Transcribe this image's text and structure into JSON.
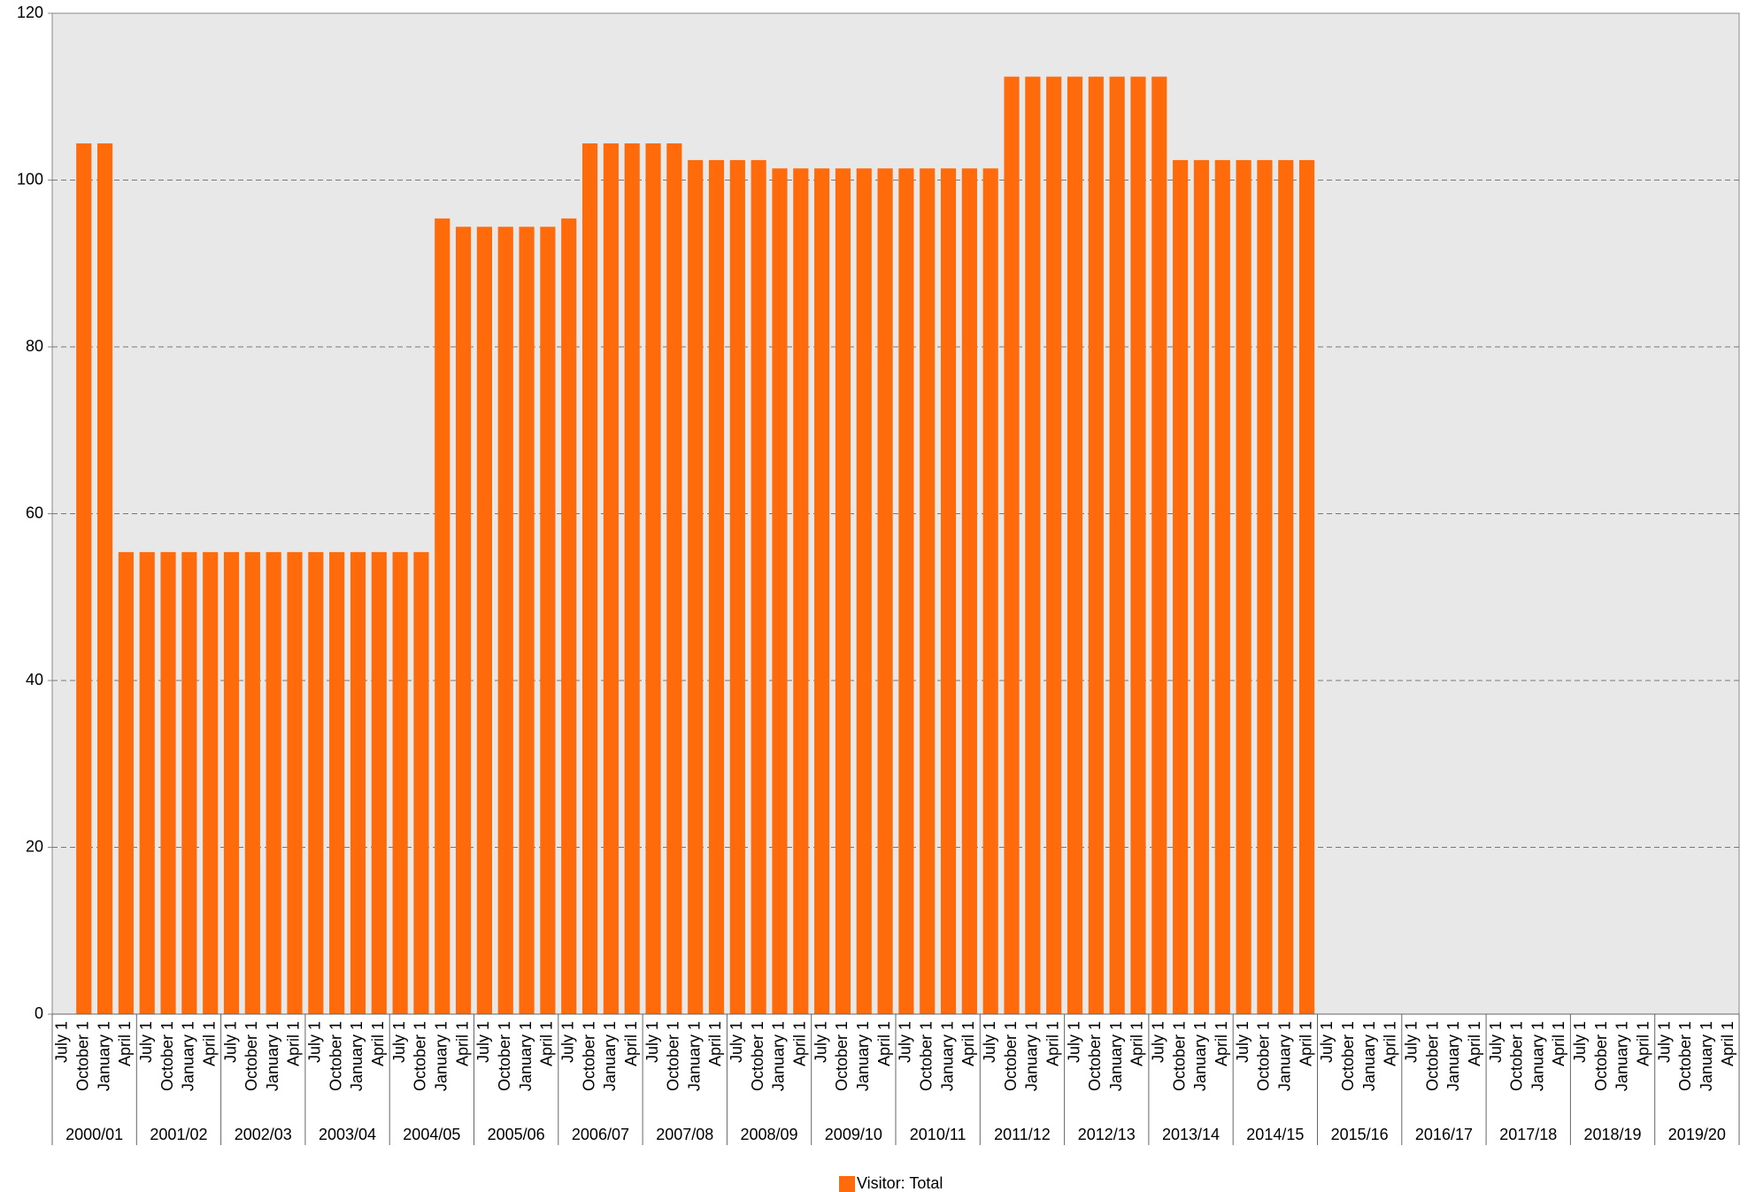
{
  "chart_data": {
    "type": "bar",
    "categories": [
      "July 1",
      "October 1",
      "January 1",
      "April 1",
      "July 1",
      "October 1",
      "January 1",
      "April 1",
      "July 1",
      "October 1",
      "January 1",
      "April 1",
      "July 1",
      "October 1",
      "January 1",
      "April 1",
      "July 1",
      "October 1",
      "January 1",
      "April 1",
      "July 1",
      "October 1",
      "January 1",
      "April 1",
      "July 1",
      "October 1",
      "January 1",
      "April 1",
      "July 1",
      "October 1",
      "January 1",
      "April 1",
      "July 1",
      "October 1",
      "January 1",
      "April 1",
      "July 1",
      "October 1",
      "January 1",
      "April 1",
      "July 1",
      "October 1",
      "January 1",
      "April 1",
      "July 1",
      "October 1",
      "January 1",
      "April 1",
      "July 1",
      "October 1",
      "January 1",
      "April 1",
      "July 1",
      "October 1",
      "January 1",
      "April 1",
      "July 1",
      "October 1",
      "January 1",
      "April 1",
      "July 1",
      "October 1",
      "January 1",
      "April 1",
      "July 1",
      "October 1",
      "January 1",
      "April 1",
      "July 1",
      "October 1",
      "January 1",
      "April 1",
      "July 1",
      "October 1",
      "January 1",
      "April 1",
      "July 1",
      "October 1",
      "January 1",
      "April 1"
    ],
    "groups": [
      "2000/01",
      "2001/02",
      "2002/03",
      "2003/04",
      "2004/05",
      "2005/06",
      "2006/07",
      "2007/08",
      "2008/09",
      "2009/10",
      "2010/11",
      "2011/12",
      "2012/13",
      "2013/14",
      "2014/15",
      "2015/16",
      "2016/17",
      "2017/18",
      "2018/19",
      "2019/20"
    ],
    "series": [
      {
        "name": "Visitor: Total",
        "color": "#ff6a0a",
        "values": [
          null,
          104.4,
          104.4,
          55.4,
          55.4,
          55.4,
          55.4,
          55.4,
          55.4,
          55.4,
          55.4,
          55.4,
          55.4,
          55.4,
          55.4,
          55.4,
          55.4,
          55.4,
          95.4,
          94.4,
          94.4,
          94.4,
          94.4,
          94.4,
          95.4,
          104.4,
          104.4,
          104.4,
          104.4,
          104.4,
          102.4,
          102.4,
          102.4,
          102.4,
          101.4,
          101.4,
          101.4,
          101.4,
          101.4,
          101.4,
          101.4,
          101.4,
          101.4,
          101.4,
          101.4,
          112.4,
          112.4,
          112.4,
          112.4,
          112.4,
          112.4,
          112.4,
          112.4,
          102.4,
          102.4,
          102.4,
          102.4,
          102.4,
          102.4,
          102.4,
          null,
          null,
          null,
          null,
          null,
          null,
          null,
          null,
          null,
          null,
          null,
          null,
          null,
          null,
          null,
          null,
          null,
          null,
          null,
          null
        ]
      }
    ],
    "ylim": [
      0,
      120
    ],
    "yticks": [
      0,
      20,
      40,
      60,
      80,
      100,
      120
    ],
    "grid": true,
    "legend": "bottom"
  }
}
